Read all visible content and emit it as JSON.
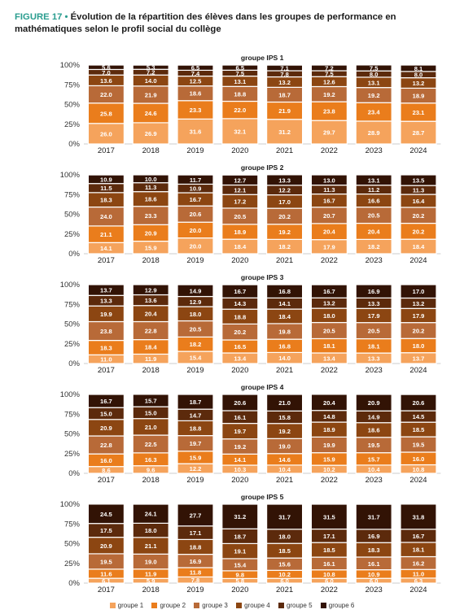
{
  "figure": {
    "label": "FIGURE 17",
    "bullet": " • ",
    "title": "Évolution de la répartition des élèves dans les groupes de performance en mathématiques selon le profil social du collège"
  },
  "colors": [
    "#f5a35c",
    "#ea7d1c",
    "#b86a38",
    "#8c4612",
    "#5c2a0c",
    "#321305"
  ],
  "chart_data": [
    {
      "type": "bar",
      "stacked": true,
      "title": "groupe IPS 1",
      "categories": [
        "2017",
        "2018",
        "2019",
        "2020",
        "2021",
        "2022",
        "2023",
        "2024"
      ],
      "ylim": [
        0,
        100
      ],
      "y_ticks": [
        "0%",
        "25%",
        "50%",
        "75%",
        "100%"
      ],
      "series": [
        {
          "name": "groupe 1",
          "values": [
            26.0,
            26.9,
            31.6,
            32.1,
            31.2,
            29.7,
            28.9,
            28.7
          ]
        },
        {
          "name": "groupe 2",
          "values": [
            25.8,
            24.6,
            23.3,
            22.0,
            21.9,
            23.8,
            23.4,
            23.1
          ]
        },
        {
          "name": "groupe 3",
          "values": [
            22.0,
            21.9,
            18.6,
            18.8,
            18.7,
            19.2,
            19.2,
            18.9
          ]
        },
        {
          "name": "groupe 4",
          "values": [
            13.6,
            14.0,
            12.5,
            13.1,
            13.2,
            12.6,
            13.1,
            13.2
          ]
        },
        {
          "name": "groupe 5",
          "values": [
            7.0,
            7.2,
            7.4,
            7.5,
            7.8,
            7.5,
            8.0,
            8.0
          ]
        },
        {
          "name": "groupe 6",
          "values": [
            5.6,
            5.3,
            6.5,
            6.5,
            7.1,
            7.2,
            7.5,
            8.1
          ]
        }
      ]
    },
    {
      "type": "bar",
      "stacked": true,
      "title": "groupe IPS 2",
      "categories": [
        "2017",
        "2018",
        "2019",
        "2020",
        "2021",
        "2022",
        "2023",
        "2024"
      ],
      "ylim": [
        0,
        100
      ],
      "y_ticks": [
        "0%",
        "25%",
        "50%",
        "75%",
        "100%"
      ],
      "series": [
        {
          "name": "groupe 1",
          "values": [
            14.1,
            15.9,
            20.0,
            18.4,
            18.2,
            17.9,
            18.2,
            18.4
          ]
        },
        {
          "name": "groupe 2",
          "values": [
            21.1,
            20.9,
            20.0,
            18.9,
            19.2,
            20.4,
            20.4,
            20.2
          ]
        },
        {
          "name": "groupe 3",
          "values": [
            24.0,
            23.3,
            20.6,
            20.5,
            20.2,
            20.7,
            20.5,
            20.2
          ]
        },
        {
          "name": "groupe 4",
          "values": [
            18.3,
            18.6,
            16.7,
            17.2,
            17.0,
            16.7,
            16.6,
            16.4
          ]
        },
        {
          "name": "groupe 5",
          "values": [
            11.5,
            11.3,
            10.9,
            12.1,
            12.2,
            11.3,
            11.2,
            11.3
          ]
        },
        {
          "name": "groupe 6",
          "values": [
            10.9,
            10.0,
            11.7,
            12.7,
            13.3,
            13.0,
            13.1,
            13.5
          ]
        }
      ]
    },
    {
      "type": "bar",
      "stacked": true,
      "title": "groupe IPS 3",
      "categories": [
        "2017",
        "2018",
        "2019",
        "2020",
        "2021",
        "2022",
        "2023",
        "2024"
      ],
      "ylim": [
        0,
        100
      ],
      "y_ticks": [
        "0%",
        "25%",
        "50%",
        "75%",
        "100%"
      ],
      "series": [
        {
          "name": "groupe 1",
          "values": [
            11.0,
            11.9,
            15.4,
            13.4,
            14.0,
            13.4,
            13.3,
            13.7
          ]
        },
        {
          "name": "groupe 2",
          "values": [
            18.3,
            18.4,
            18.2,
            16.5,
            16.8,
            18.1,
            18.1,
            18.0
          ]
        },
        {
          "name": "groupe 3",
          "values": [
            23.8,
            22.8,
            20.5,
            20.2,
            19.8,
            20.5,
            20.5,
            20.2
          ]
        },
        {
          "name": "groupe 4",
          "values": [
            19.9,
            20.4,
            18.0,
            18.8,
            18.4,
            18.0,
            17.9,
            17.9
          ]
        },
        {
          "name": "groupe 5",
          "values": [
            13.3,
            13.6,
            12.9,
            14.3,
            14.1,
            13.2,
            13.3,
            13.2
          ]
        },
        {
          "name": "groupe 6",
          "values": [
            13.7,
            12.9,
            14.9,
            16.7,
            16.8,
            16.7,
            16.9,
            17.0
          ]
        }
      ]
    },
    {
      "type": "bar",
      "stacked": true,
      "title": "groupe IPS 4",
      "categories": [
        "2017",
        "2018",
        "2019",
        "2020",
        "2021",
        "2022",
        "2023",
        "2024"
      ],
      "ylim": [
        0,
        100
      ],
      "y_ticks": [
        "0%",
        "25%",
        "50%",
        "75%",
        "100%"
      ],
      "series": [
        {
          "name": "groupe 1",
          "values": [
            8.6,
            9.6,
            12.2,
            10.3,
            10.4,
            10.2,
            10.4,
            10.8
          ]
        },
        {
          "name": "groupe 2",
          "values": [
            16.0,
            16.3,
            15.9,
            14.1,
            14.6,
            15.9,
            15.7,
            16.0
          ]
        },
        {
          "name": "groupe 3",
          "values": [
            22.8,
            22.5,
            19.7,
            19.2,
            19.0,
            19.9,
            19.5,
            19.5
          ]
        },
        {
          "name": "groupe 4",
          "values": [
            20.9,
            21.0,
            18.8,
            19.7,
            19.2,
            18.9,
            18.6,
            18.5
          ]
        },
        {
          "name": "groupe 5",
          "values": [
            15.0,
            15.0,
            14.7,
            16.1,
            15.8,
            14.8,
            14.9,
            14.5
          ]
        },
        {
          "name": "groupe 6",
          "values": [
            16.7,
            15.7,
            18.7,
            20.6,
            21.0,
            20.4,
            20.9,
            20.6
          ]
        }
      ]
    },
    {
      "type": "bar",
      "stacked": true,
      "title": "groupe IPS 5",
      "categories": [
        "2017",
        "2018",
        "2019",
        "2020",
        "2021",
        "2022",
        "2023",
        "2024"
      ],
      "ylim": [
        0,
        100
      ],
      "y_ticks": [
        "0%",
        "25%",
        "50%",
        "75%",
        "100%"
      ],
      "series": [
        {
          "name": "groupe 1",
          "values": [
            6.1,
            5.9,
            7.8,
            5.8,
            6.0,
            6.0,
            6.0,
            6.3
          ]
        },
        {
          "name": "groupe 2",
          "values": [
            11.6,
            11.9,
            11.8,
            9.8,
            10.2,
            10.8,
            10.9,
            11.0
          ]
        },
        {
          "name": "groupe 3",
          "values": [
            19.5,
            19.0,
            16.9,
            15.4,
            15.6,
            16.1,
            16.1,
            16.2
          ]
        },
        {
          "name": "groupe 4",
          "values": [
            20.9,
            21.1,
            18.8,
            19.1,
            18.5,
            18.5,
            18.3,
            18.1
          ]
        },
        {
          "name": "groupe 5",
          "values": [
            17.5,
            18.0,
            17.1,
            18.7,
            18.0,
            17.1,
            16.9,
            16.7
          ]
        },
        {
          "name": "groupe 6",
          "values": [
            24.5,
            24.1,
            27.7,
            31.2,
            31.7,
            31.5,
            31.7,
            31.8
          ]
        }
      ]
    }
  ],
  "legend": {
    "items": [
      "groupe 1",
      "groupe 2",
      "groupe 3",
      "groupe 4",
      "groupe 5",
      "groupe 6"
    ]
  }
}
